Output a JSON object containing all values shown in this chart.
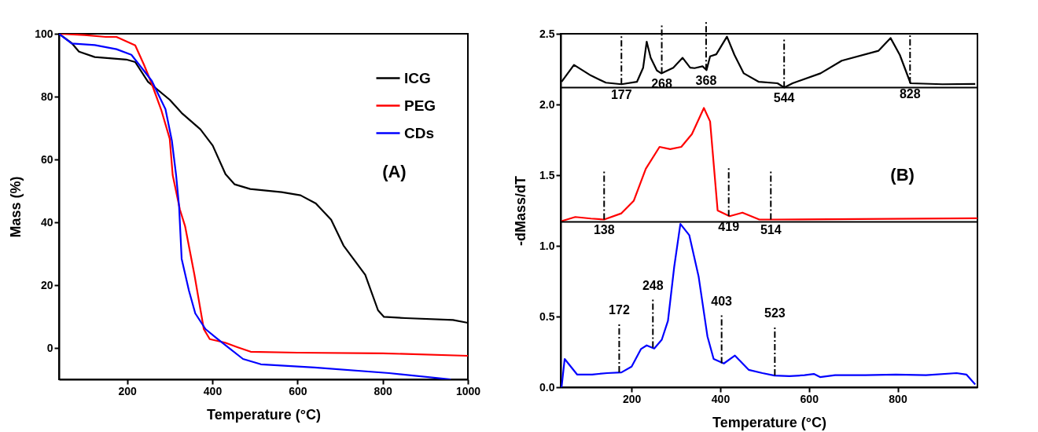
{
  "chart_data": [
    {
      "type": "line",
      "xlabel": "Temperature (°C)",
      "ylabel": "Mass (%)",
      "xlim": [
        40,
        1000
      ],
      "ylim": [
        -10,
        100
      ],
      "xticks": [
        200,
        400,
        600,
        800,
        {
          "value": 1000,
          "label": "1000"
        }
      ],
      "yticks": [
        0,
        20,
        40,
        60,
        80,
        100
      ],
      "legend": "top right",
      "grid": false,
      "annotations": [
        "(A)"
      ],
      "series": [
        {
          "name": "ICG",
          "color": "#000000",
          "x": [
            40,
            70,
            87,
            124,
            198,
            219,
            249,
            300,
            328,
            372,
            401,
            431,
            452,
            489,
            563,
            607,
            643,
            679,
            708,
            759,
            789,
            803,
            854,
            965,
            1000
          ],
          "values": [
            100,
            97,
            94.3,
            92.6,
            91.8,
            91,
            84.7,
            79,
            74.8,
            69.6,
            64.4,
            55.3,
            52.1,
            50.6,
            49.6,
            48.6,
            46,
            40.8,
            32.6,
            23.3,
            12,
            9.9,
            9.5,
            8.9,
            8
          ]
        },
        {
          "name": "PEG",
          "color": "#ff0000",
          "x": [
            40,
            100,
            150,
            175,
            219,
            240,
            258,
            280,
            300,
            307,
            324,
            336,
            358,
            380,
            394,
            430,
            460,
            490,
            600,
            800,
            1000
          ],
          "values": [
            100,
            99.6,
            99,
            99,
            96.3,
            90,
            84,
            75.8,
            66.6,
            55,
            44,
            38.8,
            23.3,
            6,
            2.8,
            1.7,
            0.2,
            -1.2,
            -1.5,
            -1.7,
            -2.5
          ]
        },
        {
          "name": "CDs",
          "color": "#0000ff",
          "x": [
            40,
            70,
            124,
            175,
            210,
            235,
            258,
            290,
            305,
            315,
            322,
            328,
            345,
            360,
            384,
            409,
            437,
            472,
            514,
            640,
            815,
            960
          ],
          "values": [
            100,
            96.9,
            96.4,
            95.1,
            93.3,
            89,
            85,
            76,
            66,
            55,
            45,
            28.4,
            18.3,
            11,
            6,
            3.2,
            0.2,
            -3.5,
            -5.2,
            -6.2,
            -8,
            -10
          ]
        }
      ]
    },
    {
      "type": "line",
      "xlabel": "Temperature (°C)",
      "ylabel": "-dMass/dT",
      "xlim": [
        40,
        980
      ],
      "ylim": [
        0,
        2.5
      ],
      "xticks": [
        200,
        400,
        600,
        800
      ],
      "yticks": [
        {
          "value": 0,
          "label": "0.0"
        },
        0.5,
        {
          "value": 1,
          "label": "1.0"
        },
        1.5,
        {
          "value": 2,
          "label": "2.0"
        },
        2.5
      ],
      "grid": false,
      "annotations": [
        "(B)",
        {
          "text": "177",
          "x": 177,
          "y": 2.143
        },
        {
          "text": "268",
          "x": 268,
          "y": 2.22
        },
        {
          "text": "368",
          "x": 368,
          "y": 2.243
        },
        {
          "text": "544",
          "x": 544,
          "y": 2.12
        },
        {
          "text": "828",
          "x": 828,
          "y": 2.15
        },
        {
          "text": "138",
          "x": 138,
          "y": 1.186
        },
        {
          "text": "419",
          "x": 419,
          "y": 1.21
        },
        {
          "text": "514",
          "x": 514,
          "y": 1.186
        },
        {
          "text": "172",
          "x": 172,
          "y": 0.105
        },
        {
          "text": "248",
          "x": 248,
          "y": 0.28
        },
        {
          "text": "403",
          "x": 403,
          "y": 0.17
        },
        {
          "text": "523",
          "x": 523,
          "y": 0.083
        }
      ],
      "ref_lines": [
        {
          "axis": "y",
          "value": 2.12,
          "color": "#000000"
        },
        {
          "axis": "y",
          "value": 1.17,
          "color": "#000000"
        }
      ],
      "series": [
        {
          "color": "#000000",
          "x": [
            42,
            70,
            108,
            142,
            177,
            212,
            226,
            234,
            243,
            257,
            267,
            294,
            315,
            332,
            342,
            360,
            369,
            377,
            391,
            415,
            432,
            453,
            487,
            529,
            544,
            563,
            626,
            674,
            757,
            784,
            805,
            829,
            901,
            975
          ],
          "values": [
            2.16,
            2.28,
            2.205,
            2.154,
            2.143,
            2.16,
            2.26,
            2.444,
            2.33,
            2.24,
            2.22,
            2.26,
            2.33,
            2.26,
            2.257,
            2.27,
            2.243,
            2.34,
            2.355,
            2.48,
            2.35,
            2.22,
            2.16,
            2.15,
            2.12,
            2.15,
            2.22,
            2.31,
            2.38,
            2.47,
            2.35,
            2.15,
            2.143,
            2.145
          ]
        },
        {
          "color": "#ff0000",
          "x": [
            42,
            73,
            108,
            138,
            177,
            205,
            232,
            263,
            287,
            312,
            336,
            363,
            377,
            394,
            421,
            450,
            488,
            522,
            980
          ],
          "values": [
            1.175,
            1.204,
            1.193,
            1.186,
            1.23,
            1.32,
            1.545,
            1.7,
            1.684,
            1.7,
            1.79,
            1.975,
            1.88,
            1.25,
            1.21,
            1.235,
            1.186,
            1.186,
            1.195
          ]
        },
        {
          "color": "#0000ff",
          "x": [
            42,
            49,
            77,
            111,
            145,
            177,
            200,
            221,
            234,
            251,
            268,
            282,
            296,
            310,
            330,
            351,
            371,
            385,
            408,
            433,
            464,
            495,
            522,
            556,
            590,
            611,
            625,
            659,
            727,
            796,
            864,
            933,
            955,
            975
          ],
          "values": [
            0,
            0.2,
            0.09,
            0.09,
            0.1,
            0.105,
            0.146,
            0.27,
            0.296,
            0.274,
            0.336,
            0.47,
            0.85,
            1.155,
            1.076,
            0.785,
            0.36,
            0.2,
            0.168,
            0.224,
            0.123,
            0.1,
            0.083,
            0.078,
            0.085,
            0.094,
            0.072,
            0.085,
            0.085,
            0.09,
            0.085,
            0.1,
            0.09,
            0.02
          ]
        }
      ]
    }
  ]
}
